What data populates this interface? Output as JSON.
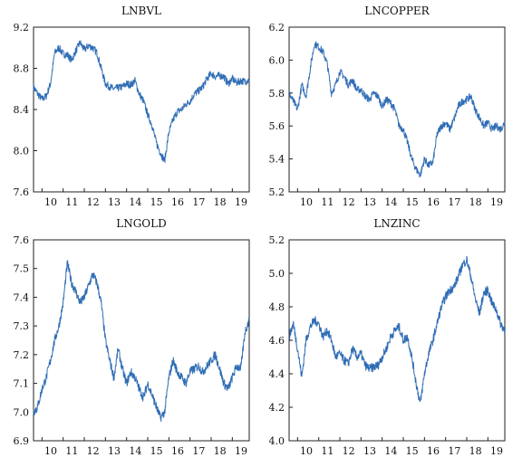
{
  "chart_data": [
    {
      "type": "line",
      "title": "LNBVL",
      "xlabel": "",
      "ylabel": "",
      "x_ticks": [
        "10",
        "11",
        "12",
        "13",
        "14",
        "15",
        "16",
        "17",
        "18",
        "19"
      ],
      "xlim": [
        2009.6,
        2019.8
      ],
      "ylim": [
        7.6,
        9.2
      ],
      "y_ticks": [
        "7.6",
        "8.0",
        "8.4",
        "8.8",
        "9.2"
      ],
      "line_color": "#2f6db5",
      "series": [
        {
          "x": [
            2009.6,
            2009.8,
            2010.0,
            2010.2,
            2010.4,
            2010.6,
            2010.8,
            2011.0,
            2011.2,
            2011.4,
            2011.6,
            2011.8,
            2012.0,
            2012.2,
            2012.4,
            2012.6,
            2012.8,
            2013.0,
            2013.2,
            2013.4,
            2013.6,
            2013.8,
            2014.0,
            2014.2,
            2014.4,
            2014.6,
            2014.8,
            2015.0,
            2015.2,
            2015.4,
            2015.6,
            2015.8,
            2016.0,
            2016.2,
            2016.4,
            2016.6,
            2016.8,
            2017.0,
            2017.2,
            2017.4,
            2017.6,
            2017.8,
            2018.0,
            2018.2,
            2018.4,
            2018.6,
            2018.8,
            2019.0,
            2019.2,
            2019.4,
            2019.6,
            2019.8
          ],
          "values": [
            8.62,
            8.55,
            8.5,
            8.53,
            8.65,
            8.95,
            9.0,
            8.94,
            8.93,
            8.88,
            8.97,
            9.05,
            8.98,
            9.02,
            9.0,
            8.95,
            8.8,
            8.65,
            8.62,
            8.6,
            8.61,
            8.62,
            8.65,
            8.64,
            8.68,
            8.55,
            8.48,
            8.35,
            8.25,
            8.08,
            7.98,
            7.9,
            8.18,
            8.3,
            8.38,
            8.4,
            8.45,
            8.48,
            8.55,
            8.58,
            8.62,
            8.7,
            8.75,
            8.72,
            8.73,
            8.72,
            8.65,
            8.7,
            8.66,
            8.68,
            8.67,
            8.69
          ]
        }
      ]
    },
    {
      "type": "line",
      "title": "LNCOPPER",
      "xlabel": "",
      "ylabel": "",
      "x_ticks": [
        "10",
        "11",
        "12",
        "13",
        "14",
        "15",
        "16",
        "17",
        "18",
        "19"
      ],
      "xlim": [
        2009.6,
        2019.8
      ],
      "ylim": [
        5.2,
        6.2
      ],
      "y_ticks": [
        "5.2",
        "5.4",
        "5.6",
        "5.8",
        "6.0",
        "6.2"
      ],
      "line_color": "#2f6db5",
      "series": [
        {
          "x": [
            2009.6,
            2009.8,
            2010.0,
            2010.2,
            2010.4,
            2010.6,
            2010.8,
            2011.0,
            2011.2,
            2011.4,
            2011.6,
            2011.8,
            2012.0,
            2012.2,
            2012.4,
            2012.6,
            2012.8,
            2013.0,
            2013.2,
            2013.4,
            2013.6,
            2013.8,
            2014.0,
            2014.2,
            2014.4,
            2014.6,
            2014.8,
            2015.0,
            2015.2,
            2015.4,
            2015.6,
            2015.8,
            2016.0,
            2016.2,
            2016.4,
            2016.6,
            2016.8,
            2017.0,
            2017.2,
            2017.4,
            2017.6,
            2017.8,
            2018.0,
            2018.2,
            2018.4,
            2018.6,
            2018.8,
            2019.0,
            2019.2,
            2019.4,
            2019.6,
            2019.8
          ],
          "values": [
            5.8,
            5.75,
            5.7,
            5.85,
            5.78,
            5.95,
            6.1,
            6.08,
            6.05,
            5.98,
            5.8,
            5.85,
            5.93,
            5.9,
            5.85,
            5.88,
            5.82,
            5.82,
            5.78,
            5.76,
            5.8,
            5.78,
            5.72,
            5.76,
            5.74,
            5.7,
            5.6,
            5.58,
            5.5,
            5.4,
            5.34,
            5.3,
            5.4,
            5.36,
            5.38,
            5.55,
            5.6,
            5.62,
            5.58,
            5.64,
            5.72,
            5.75,
            5.76,
            5.78,
            5.7,
            5.65,
            5.6,
            5.62,
            5.58,
            5.6,
            5.58,
            5.62
          ]
        }
      ]
    },
    {
      "type": "line",
      "title": "LNGOLD",
      "xlabel": "",
      "ylabel": "",
      "x_ticks": [
        "10",
        "11",
        "12",
        "13",
        "14",
        "15",
        "16",
        "17",
        "18",
        "19"
      ],
      "xlim": [
        2009.6,
        2019.8
      ],
      "ylim": [
        6.9,
        7.6
      ],
      "y_ticks": [
        "6.9",
        "7.0",
        "7.1",
        "7.2",
        "7.3",
        "7.4",
        "7.5",
        "7.6"
      ],
      "line_color": "#2f6db5",
      "series": [
        {
          "x": [
            2009.6,
            2009.8,
            2010.0,
            2010.2,
            2010.4,
            2010.6,
            2010.8,
            2011.0,
            2011.2,
            2011.4,
            2011.6,
            2011.8,
            2012.0,
            2012.2,
            2012.4,
            2012.6,
            2012.8,
            2013.0,
            2013.2,
            2013.4,
            2013.6,
            2013.8,
            2014.0,
            2014.2,
            2014.4,
            2014.6,
            2014.8,
            2015.0,
            2015.2,
            2015.4,
            2015.6,
            2015.8,
            2016.0,
            2016.2,
            2016.4,
            2016.6,
            2016.8,
            2017.0,
            2017.2,
            2017.4,
            2017.6,
            2017.8,
            2018.0,
            2018.2,
            2018.4,
            2018.6,
            2018.8,
            2019.0,
            2019.2,
            2019.4,
            2019.6,
            2019.8
          ],
          "values": [
            7.0,
            7.02,
            7.08,
            7.12,
            7.18,
            7.25,
            7.3,
            7.38,
            7.52,
            7.45,
            7.42,
            7.38,
            7.4,
            7.44,
            7.48,
            7.45,
            7.38,
            7.25,
            7.18,
            7.12,
            7.22,
            7.15,
            7.1,
            7.14,
            7.12,
            7.08,
            7.05,
            7.1,
            7.06,
            7.02,
            6.98,
            7.0,
            7.12,
            7.18,
            7.14,
            7.12,
            7.1,
            7.14,
            7.15,
            7.16,
            7.14,
            7.16,
            7.18,
            7.2,
            7.15,
            7.1,
            7.08,
            7.12,
            7.16,
            7.15,
            7.28,
            7.32
          ]
        }
      ]
    },
    {
      "type": "line",
      "title": "LNZINC",
      "xlabel": "",
      "ylabel": "",
      "x_ticks": [
        "10",
        "11",
        "12",
        "13",
        "14",
        "15",
        "16",
        "17",
        "18",
        "19"
      ],
      "xlim": [
        2009.6,
        2019.8
      ],
      "ylim": [
        4.0,
        5.2
      ],
      "y_ticks": [
        "4.0",
        "4.2",
        "4.4",
        "4.6",
        "4.8",
        "5.0",
        "5.2"
      ],
      "line_color": "#2f6db5",
      "series": [
        {
          "x": [
            2009.6,
            2009.8,
            2010.0,
            2010.2,
            2010.4,
            2010.6,
            2010.8,
            2011.0,
            2011.2,
            2011.4,
            2011.6,
            2011.8,
            2012.0,
            2012.2,
            2012.4,
            2012.6,
            2012.8,
            2013.0,
            2013.2,
            2013.4,
            2013.6,
            2013.8,
            2014.0,
            2014.2,
            2014.4,
            2014.6,
            2014.8,
            2015.0,
            2015.2,
            2015.4,
            2015.6,
            2015.8,
            2016.0,
            2016.2,
            2016.4,
            2016.6,
            2016.8,
            2017.0,
            2017.2,
            2017.4,
            2017.6,
            2017.8,
            2018.0,
            2018.2,
            2018.4,
            2018.6,
            2018.8,
            2019.0,
            2019.2,
            2019.4,
            2019.6,
            2019.8
          ],
          "values": [
            4.62,
            4.7,
            4.55,
            4.38,
            4.6,
            4.68,
            4.72,
            4.7,
            4.62,
            4.66,
            4.6,
            4.5,
            4.52,
            4.48,
            4.46,
            4.55,
            4.5,
            4.52,
            4.45,
            4.43,
            4.44,
            4.45,
            4.5,
            4.55,
            4.62,
            4.66,
            4.68,
            4.6,
            4.62,
            4.5,
            4.35,
            4.22,
            4.4,
            4.52,
            4.6,
            4.7,
            4.8,
            4.86,
            4.9,
            4.92,
            4.98,
            5.05,
            5.08,
            4.98,
            4.85,
            4.76,
            4.88,
            4.9,
            4.82,
            4.78,
            4.7,
            4.66
          ]
        }
      ]
    }
  ]
}
